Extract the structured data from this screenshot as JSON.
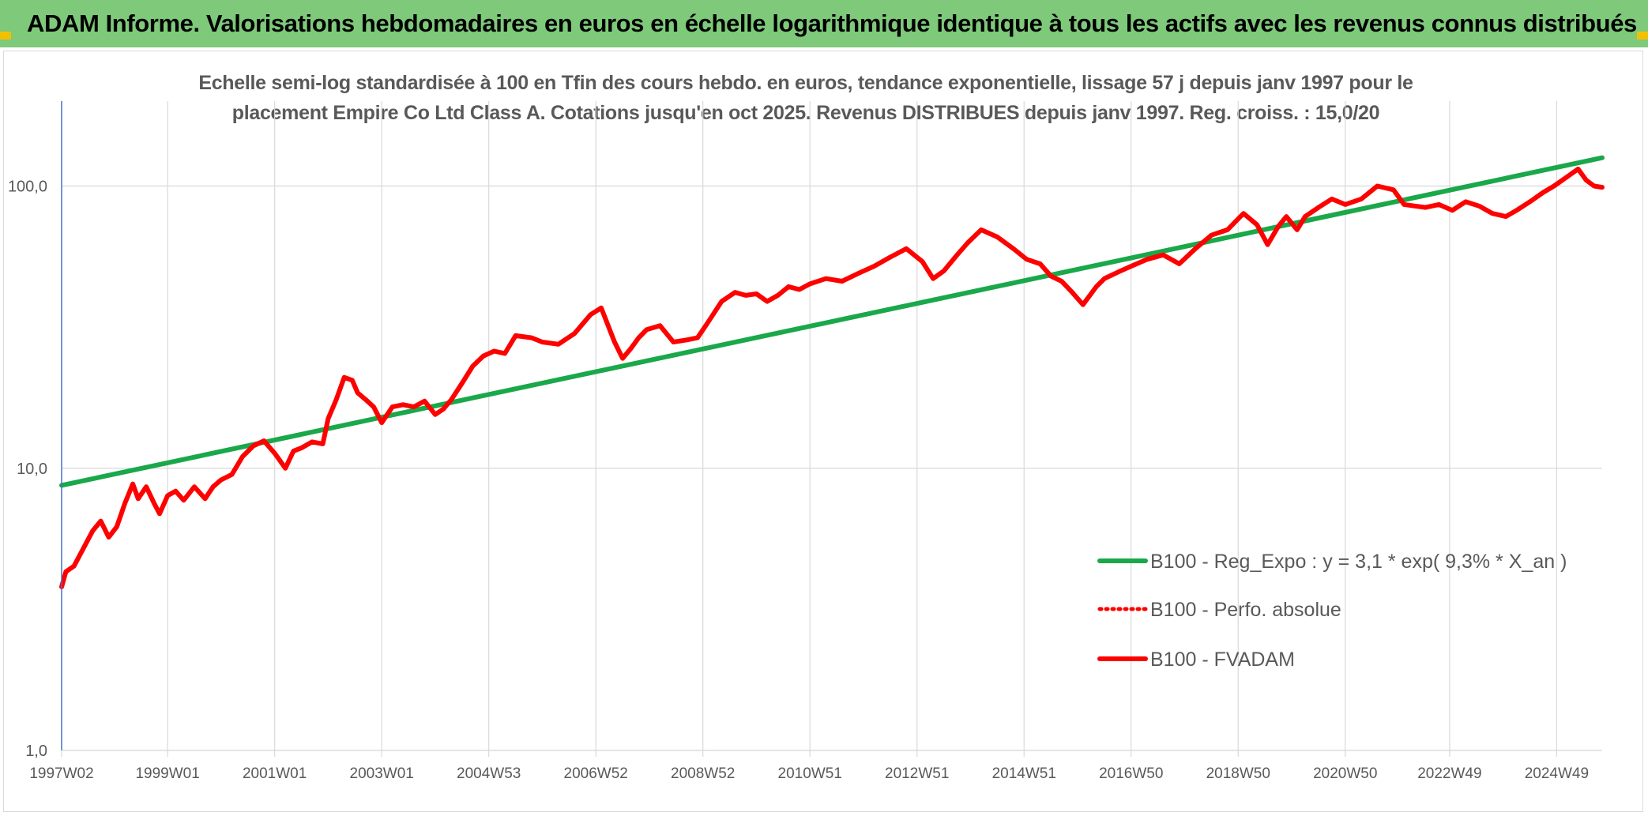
{
  "header": {
    "title": "ADAM Informe. Valorisations hebdomadaires en euros en échelle logarithmique identique à tous les actifs avec les revenus connus distribués"
  },
  "colors": {
    "banner": "#7ec97a",
    "regression": "#1aa84a",
    "fvadam": "#ff0000",
    "perf_absolue": "#ff0000",
    "grid": "#d9d9d9",
    "axis": "#4472c4"
  },
  "chart_data": {
    "type": "line",
    "title": "Echelle semi-log standardisée à 100 en Tfin des cours hebdo. en euros, tendance exponentielle, lissage 57 j depuis janv 1997 pour le placement Empire Co Ltd Class A. Cotations jusqu'en oct 2025. Revenus DISTRIBUES depuis janv 1997. Reg. croiss. : 15,0/20",
    "title_lines": [
      "Echelle semi-log standardisée à 100 en Tfin des cours hebdo. en euros, tendance exponentielle, lissage 57 j depuis janv 1997 pour le",
      "placement Empire Co Ltd Class A. Cotations jusqu'en oct 2025. Revenus DISTRIBUES depuis janv 1997. Reg. croiss. : 15,0/20"
    ],
    "y_scale": "log",
    "ylim": [
      1,
      200
    ],
    "y_ticks": [
      {
        "value": 100,
        "label": "100,0"
      },
      {
        "value": 10,
        "label": "10,0"
      },
      {
        "value": 1,
        "label": "1,0"
      }
    ],
    "xlim": [
      1997.02,
      2025.8
    ],
    "x_ticks": [
      {
        "value": 1997.02,
        "label": "1997W02"
      },
      {
        "value": 1999.0,
        "label": "1999W01"
      },
      {
        "value": 2001.0,
        "label": "2001W01"
      },
      {
        "value": 2003.0,
        "label": "2003W01"
      },
      {
        "value": 2005.0,
        "label": "2004W53"
      },
      {
        "value": 2007.0,
        "label": "2006W52"
      },
      {
        "value": 2009.0,
        "label": "2008W52"
      },
      {
        "value": 2011.0,
        "label": "2010W51"
      },
      {
        "value": 2013.0,
        "label": "2012W51"
      },
      {
        "value": 2015.0,
        "label": "2014W51"
      },
      {
        "value": 2017.0,
        "label": "2016W50"
      },
      {
        "value": 2019.0,
        "label": "2018W50"
      },
      {
        "value": 2021.0,
        "label": "2020W50"
      },
      {
        "value": 2022.95,
        "label": "2022W49"
      },
      {
        "value": 2024.95,
        "label": "2024W49"
      }
    ],
    "grid": true,
    "legend_position": "right",
    "series": [
      {
        "name": "B100 - Reg_Expo : y = 3,1 * exp( 9,3% *  X_an )",
        "style": "solid",
        "color": "#1aa84a",
        "x": [
          1997.02,
          2025.8
        ],
        "y": [
          8.7,
          126
        ]
      },
      {
        "name": "B100 - Perfo. absolue",
        "style": "dotted",
        "color": "#ff0000",
        "x": [],
        "y": []
      },
      {
        "name": "B100 - FVADAM",
        "style": "solid",
        "color": "#ff0000",
        "x": [
          1997.02,
          1997.1,
          1997.25,
          1997.45,
          1997.6,
          1997.75,
          1997.9,
          1998.05,
          1998.2,
          1998.35,
          1998.45,
          1998.6,
          1998.75,
          1998.85,
          1999.0,
          1999.15,
          1999.3,
          1999.5,
          1999.7,
          1999.85,
          2000.0,
          2000.2,
          2000.4,
          2000.6,
          2000.8,
          2001.0,
          2001.2,
          2001.35,
          2001.5,
          2001.7,
          2001.9,
          2002.0,
          2002.15,
          2002.3,
          2002.45,
          2002.55,
          2002.7,
          2002.85,
          2003.0,
          2003.2,
          2003.4,
          2003.6,
          2003.8,
          2004.0,
          2004.15,
          2004.3,
          2004.5,
          2004.7,
          2004.9,
          2005.1,
          2005.3,
          2005.5,
          2005.8,
          2006.0,
          2006.3,
          2006.6,
          2006.9,
          2007.1,
          2007.35,
          2007.5,
          2007.65,
          2007.8,
          2007.95,
          2008.2,
          2008.45,
          2008.7,
          2008.9,
          2009.1,
          2009.35,
          2009.6,
          2009.8,
          2010.0,
          2010.2,
          2010.4,
          2010.6,
          2010.8,
          2011.0,
          2011.3,
          2011.6,
          2011.9,
          2012.2,
          2012.5,
          2012.8,
          2013.1,
          2013.3,
          2013.5,
          2013.75,
          2013.95,
          2014.2,
          2014.5,
          2014.8,
          2015.05,
          2015.3,
          2015.5,
          2015.7,
          2015.9,
          2016.1,
          2016.35,
          2016.5,
          2016.8,
          2017.0,
          2017.3,
          2017.6,
          2017.9,
          2018.2,
          2018.5,
          2018.8,
          2019.1,
          2019.35,
          2019.55,
          2019.75,
          2019.9,
          2020.1,
          2020.25,
          2020.5,
          2020.75,
          2021.0,
          2021.3,
          2021.6,
          2021.9,
          2022.1,
          2022.3,
          2022.5,
          2022.75,
          2023.0,
          2023.25,
          2023.5,
          2023.75,
          2024.0,
          2024.2,
          2024.45,
          2024.7,
          2024.9,
          2025.15,
          2025.35,
          2025.5,
          2025.65,
          2025.8
        ],
        "y": [
          3.8,
          4.3,
          4.5,
          5.3,
          6.0,
          6.5,
          5.7,
          6.2,
          7.5,
          8.8,
          7.8,
          8.6,
          7.5,
          6.9,
          8.0,
          8.3,
          7.7,
          8.6,
          7.8,
          8.6,
          9.1,
          9.5,
          11.0,
          12.0,
          12.5,
          11.3,
          10.0,
          11.5,
          11.8,
          12.4,
          12.2,
          15.0,
          17.5,
          21.0,
          20.5,
          18.5,
          17.5,
          16.5,
          14.5,
          16.5,
          16.8,
          16.5,
          17.3,
          15.5,
          16.2,
          17.5,
          20.0,
          23.0,
          25.0,
          26.0,
          25.5,
          29.5,
          29.0,
          28.0,
          27.5,
          30.0,
          35.0,
          37.0,
          28.0,
          24.5,
          26.5,
          29.0,
          31.0,
          32.0,
          28.0,
          28.5,
          29.0,
          33.0,
          39.0,
          42.0,
          41.0,
          41.5,
          39.0,
          41.0,
          44.0,
          43.0,
          45.0,
          47.0,
          46.0,
          49.0,
          52.0,
          56.0,
          60.0,
          54.0,
          47.0,
          50.0,
          57.0,
          63.0,
          70.0,
          66.0,
          60.0,
          55.0,
          53.0,
          48.0,
          46.0,
          42.0,
          38.0,
          44.0,
          47.0,
          50.0,
          52.0,
          55.0,
          57.0,
          53.0,
          60.0,
          67.0,
          70.0,
          80.0,
          73.0,
          62.0,
          72.0,
          78.0,
          70.0,
          78.0,
          84.0,
          90.0,
          86.0,
          90.0,
          100.0,
          97.0,
          86.0,
          85.0,
          84.0,
          86.0,
          82.0,
          88.0,
          85.0,
          80.0,
          78.0,
          82.0,
          88.0,
          95.0,
          100.0,
          108.0,
          115.0,
          105.0,
          100.0,
          99.0
        ]
      }
    ]
  }
}
